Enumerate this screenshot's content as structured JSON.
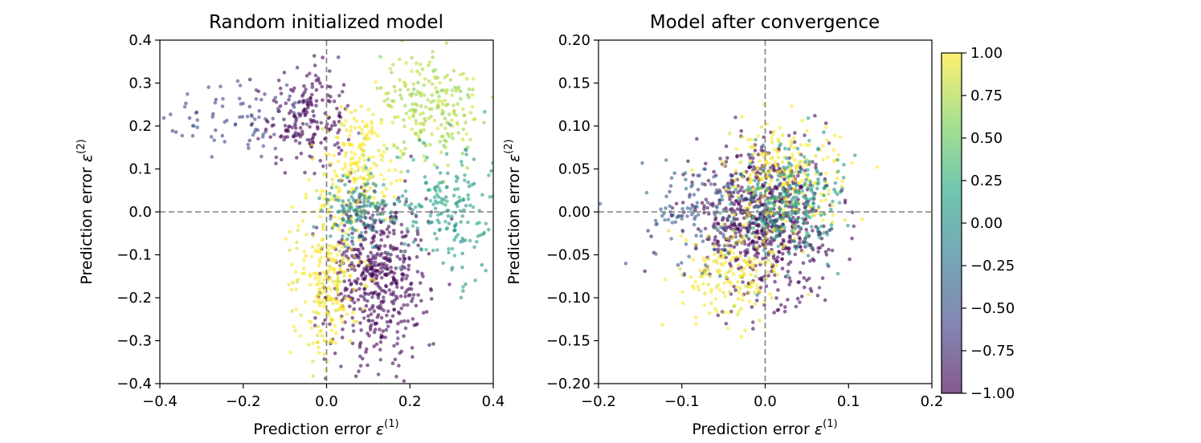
{
  "chart_data": [
    {
      "type": "scatter",
      "title": "Random initialized model",
      "xlabel": "Prediction error",
      "xlabel_symbol": "ε",
      "xlabel_superscript": "(1)",
      "ylabel": "Prediction error",
      "ylabel_symbol": "ε",
      "ylabel_superscript": "(2)",
      "xlim": [
        -0.4,
        0.4
      ],
      "ylim": [
        -0.4,
        0.4
      ],
      "xticks": [
        -0.4,
        -0.2,
        0.0,
        0.2,
        0.4
      ],
      "xtick_labels": [
        "−0.4",
        "−0.2",
        "0.0",
        "0.2",
        "0.4"
      ],
      "yticks": [
        -0.4,
        -0.3,
        -0.2,
        -0.1,
        0.0,
        0.1,
        0.2,
        0.3,
        0.4
      ],
      "ytick_labels": [
        "−0.4",
        "−0.3",
        "−0.2",
        "−0.1",
        "0.0",
        "0.1",
        "0.2",
        "0.3",
        "0.4"
      ],
      "reference_lines": {
        "x": 0.0,
        "y": 0.0,
        "style": "dashed",
        "color": "#808080"
      },
      "point_clusters": [
        {
          "label": "upper-left arc",
          "x_mean": -0.2,
          "x_sd": 0.1,
          "y_mean": 0.22,
          "y_sd": 0.05,
          "color_value": -0.6,
          "count": 90
        },
        {
          "label": "dark band near origin",
          "x_mean": -0.04,
          "x_sd": 0.05,
          "y_mean": 0.22,
          "y_sd": 0.06,
          "color_value": -1.0,
          "count": 180
        },
        {
          "label": "lower dark diagonal",
          "x_mean": 0.12,
          "x_sd": 0.06,
          "y_mean": -0.15,
          "y_sd": 0.1,
          "color_value": -1.0,
          "count": 520
        },
        {
          "label": "lower-left yellow",
          "x_mean": 0.0,
          "x_sd": 0.04,
          "y_mean": -0.15,
          "y_sd": 0.1,
          "color_value": 1.0,
          "count": 260
        },
        {
          "label": "upper-right yellow-green",
          "x_mean": 0.25,
          "x_sd": 0.06,
          "y_mean": 0.25,
          "y_sd": 0.06,
          "color_value": 0.75,
          "count": 220
        },
        {
          "label": "center yellow",
          "x_mean": 0.08,
          "x_sd": 0.05,
          "y_mean": 0.12,
          "y_sd": 0.07,
          "color_value": 1.0,
          "count": 200
        },
        {
          "label": "right teal",
          "x_mean": 0.3,
          "x_sd": 0.06,
          "y_mean": 0.0,
          "y_sd": 0.08,
          "color_value": 0.1,
          "count": 180
        },
        {
          "label": "center teal",
          "x_mean": 0.08,
          "x_sd": 0.05,
          "y_mean": 0.0,
          "y_sd": 0.04,
          "color_value": 0.0,
          "count": 140
        }
      ],
      "point_alpha": 0.6,
      "point_count_total": 1790
    },
    {
      "type": "scatter",
      "title": "Model after convergence",
      "xlabel": "Prediction error",
      "xlabel_symbol": "ε",
      "xlabel_superscript": "(1)",
      "ylabel": "Prediction error",
      "ylabel_symbol": "ε",
      "ylabel_superscript": "(2)",
      "xlim": [
        -0.2,
        0.2
      ],
      "ylim": [
        -0.2,
        0.2
      ],
      "xticks": [
        -0.2,
        -0.1,
        0.0,
        0.1,
        0.2
      ],
      "xtick_labels": [
        "−0.2",
        "−0.1",
        "0.0",
        "0.1",
        "0.2"
      ],
      "yticks": [
        -0.2,
        -0.15,
        -0.1,
        -0.05,
        0.0,
        0.05,
        0.1,
        0.15,
        0.2
      ],
      "ytick_labels": [
        "−0.20",
        "−0.15",
        "−0.10",
        "−0.05",
        "0.00",
        "0.05",
        "0.10",
        "0.15",
        "0.20"
      ],
      "reference_lines": {
        "x": 0.0,
        "y": 0.0,
        "style": "dashed",
        "color": "#808080"
      },
      "point_clusters": [
        {
          "label": "dark center",
          "x_mean": 0.0,
          "x_sd": 0.04,
          "y_mean": -0.01,
          "y_sd": 0.04,
          "color_value": -1.0,
          "count": 700
        },
        {
          "label": "yellow upper",
          "x_mean": 0.02,
          "x_sd": 0.035,
          "y_mean": 0.04,
          "y_sd": 0.035,
          "color_value": 1.0,
          "count": 250
        },
        {
          "label": "yellow lower-left",
          "x_mean": -0.04,
          "x_sd": 0.03,
          "y_mean": -0.07,
          "y_sd": 0.03,
          "color_value": 1.0,
          "count": 180
        },
        {
          "label": "teal center",
          "x_mean": 0.03,
          "x_sd": 0.03,
          "y_mean": 0.01,
          "y_sd": 0.03,
          "color_value": 0.1,
          "count": 250
        },
        {
          "label": "blue left",
          "x_mean": -0.07,
          "x_sd": 0.04,
          "y_mean": 0.0,
          "y_sd": 0.03,
          "color_value": -0.4,
          "count": 130
        }
      ],
      "point_alpha": 0.6,
      "point_count_total": 1510
    }
  ],
  "colorbar": {
    "min": -1.0,
    "max": 1.0,
    "ticks": [
      1.0,
      0.75,
      0.5,
      0.25,
      0.0,
      -0.25,
      -0.5,
      -0.75,
      -1.0
    ],
    "tick_labels": [
      "1.00",
      "0.75",
      "0.50",
      "0.25",
      "0.00",
      "−0.25",
      "−0.50",
      "−0.75",
      "−1.00"
    ],
    "colormap": "viridis",
    "colormap_stops": [
      "#440154",
      "#414487",
      "#2a788e",
      "#22a884",
      "#7ad151",
      "#fde725"
    ]
  }
}
